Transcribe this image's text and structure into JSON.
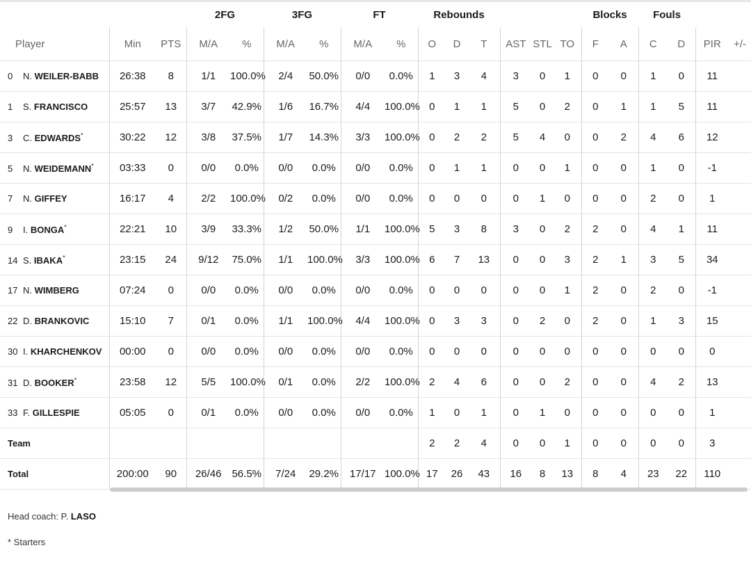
{
  "headers": {
    "group": [
      "",
      "",
      "",
      "2FG",
      "",
      "3FG",
      "",
      "FT",
      "",
      "Rebounds",
      "",
      "",
      "",
      "",
      "",
      "Blocks",
      "",
      "Fouls",
      "",
      "",
      ""
    ],
    "sub": [
      "Player",
      "Min",
      "PTS",
      "M/A",
      "%",
      "M/A",
      "%",
      "M/A",
      "%",
      "O",
      "D",
      "T",
      "AST",
      "STL",
      "TO",
      "F",
      "A",
      "C",
      "D",
      "PIR",
      "+/-"
    ]
  },
  "players": [
    {
      "num": "0",
      "initial": "N.",
      "surname": "WEILER-BABB",
      "starter": false,
      "stats": [
        "26:38",
        "8",
        "1/1",
        "100.0%",
        "2/4",
        "50.0%",
        "0/0",
        "0.0%",
        "1",
        "3",
        "4",
        "3",
        "0",
        "1",
        "0",
        "0",
        "1",
        "0",
        "11",
        ""
      ]
    },
    {
      "num": "1",
      "initial": "S.",
      "surname": "FRANCISCO",
      "starter": false,
      "stats": [
        "25:57",
        "13",
        "3/7",
        "42.9%",
        "1/6",
        "16.7%",
        "4/4",
        "100.0%",
        "0",
        "1",
        "1",
        "5",
        "0",
        "2",
        "0",
        "1",
        "1",
        "5",
        "11",
        ""
      ]
    },
    {
      "num": "3",
      "initial": "C.",
      "surname": "EDWARDS",
      "starter": true,
      "stats": [
        "30:22",
        "12",
        "3/8",
        "37.5%",
        "1/7",
        "14.3%",
        "3/3",
        "100.0%",
        "0",
        "2",
        "2",
        "5",
        "4",
        "0",
        "0",
        "2",
        "4",
        "6",
        "12",
        ""
      ]
    },
    {
      "num": "5",
      "initial": "N.",
      "surname": "WEIDEMANN",
      "starter": true,
      "stats": [
        "03:33",
        "0",
        "0/0",
        "0.0%",
        "0/0",
        "0.0%",
        "0/0",
        "0.0%",
        "0",
        "1",
        "1",
        "0",
        "0",
        "1",
        "0",
        "0",
        "1",
        "0",
        "-1",
        ""
      ]
    },
    {
      "num": "7",
      "initial": "N.",
      "surname": "GIFFEY",
      "starter": false,
      "stats": [
        "16:17",
        "4",
        "2/2",
        "100.0%",
        "0/2",
        "0.0%",
        "0/0",
        "0.0%",
        "0",
        "0",
        "0",
        "0",
        "1",
        "0",
        "0",
        "0",
        "2",
        "0",
        "1",
        ""
      ]
    },
    {
      "num": "9",
      "initial": "I.",
      "surname": "BONGA",
      "starter": true,
      "stats": [
        "22:21",
        "10",
        "3/9",
        "33.3%",
        "1/2",
        "50.0%",
        "1/1",
        "100.0%",
        "5",
        "3",
        "8",
        "3",
        "0",
        "2",
        "2",
        "0",
        "4",
        "1",
        "11",
        ""
      ]
    },
    {
      "num": "14",
      "initial": "S.",
      "surname": "IBAKA",
      "starter": true,
      "stats": [
        "23:15",
        "24",
        "9/12",
        "75.0%",
        "1/1",
        "100.0%",
        "3/3",
        "100.0%",
        "6",
        "7",
        "13",
        "0",
        "0",
        "3",
        "2",
        "1",
        "3",
        "5",
        "34",
        ""
      ]
    },
    {
      "num": "17",
      "initial": "N.",
      "surname": "WIMBERG",
      "starter": false,
      "stats": [
        "07:24",
        "0",
        "0/0",
        "0.0%",
        "0/0",
        "0.0%",
        "0/0",
        "0.0%",
        "0",
        "0",
        "0",
        "0",
        "0",
        "1",
        "2",
        "0",
        "2",
        "0",
        "-1",
        ""
      ]
    },
    {
      "num": "22",
      "initial": "D.",
      "surname": "BRANKOVIC",
      "starter": false,
      "stats": [
        "15:10",
        "7",
        "0/1",
        "0.0%",
        "1/1",
        "100.0%",
        "4/4",
        "100.0%",
        "0",
        "3",
        "3",
        "0",
        "2",
        "0",
        "2",
        "0",
        "1",
        "3",
        "15",
        ""
      ]
    },
    {
      "num": "30",
      "initial": "I.",
      "surname": "KHARCHENKOV",
      "starter": false,
      "stats": [
        "00:00",
        "0",
        "0/0",
        "0.0%",
        "0/0",
        "0.0%",
        "0/0",
        "0.0%",
        "0",
        "0",
        "0",
        "0",
        "0",
        "0",
        "0",
        "0",
        "0",
        "0",
        "0",
        ""
      ]
    },
    {
      "num": "31",
      "initial": "D.",
      "surname": "BOOKER",
      "starter": true,
      "stats": [
        "23:58",
        "12",
        "5/5",
        "100.0%",
        "0/1",
        "0.0%",
        "2/2",
        "100.0%",
        "2",
        "4",
        "6",
        "0",
        "0",
        "2",
        "0",
        "0",
        "4",
        "2",
        "13",
        ""
      ]
    },
    {
      "num": "33",
      "initial": "F.",
      "surname": "GILLESPIE",
      "starter": false,
      "stats": [
        "05:05",
        "0",
        "0/1",
        "0.0%",
        "0/0",
        "0.0%",
        "0/0",
        "0.0%",
        "1",
        "0",
        "1",
        "0",
        "1",
        "0",
        "0",
        "0",
        "0",
        "0",
        "1",
        ""
      ]
    }
  ],
  "team_row": {
    "label": "Team",
    "stats": [
      "",
      "",
      "",
      "",
      "",
      "",
      "",
      "",
      "2",
      "2",
      "4",
      "0",
      "0",
      "1",
      "0",
      "0",
      "0",
      "0",
      "3",
      ""
    ]
  },
  "total_row": {
    "label": "Total",
    "stats": [
      "200:00",
      "90",
      "26/46",
      "56.5%",
      "7/24",
      "29.2%",
      "17/17",
      "100.0%",
      "17",
      "26",
      "43",
      "16",
      "8",
      "13",
      "8",
      "4",
      "23",
      "22",
      "110",
      ""
    ]
  },
  "starter_mark": "*",
  "footer": {
    "coach_prefix": "Head coach: P.",
    "coach_surname": "LASO",
    "starters_note": "* Starters"
  }
}
